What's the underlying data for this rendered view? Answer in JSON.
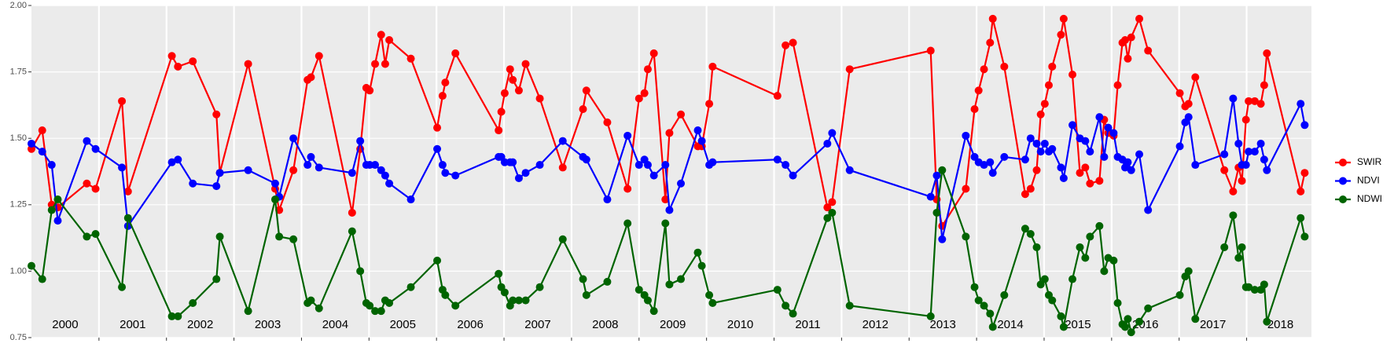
{
  "chart_data": {
    "type": "line",
    "x": [
      2000.0,
      2000.16,
      2000.3,
      2000.39,
      2000.82,
      2000.95,
      2001.34,
      2001.43,
      2002.08,
      2002.17,
      2002.39,
      2002.74,
      2002.79,
      2003.21,
      2003.61,
      2003.67,
      2003.88,
      2004.09,
      2004.14,
      2004.26,
      2004.75,
      2004.87,
      2004.96,
      2005.01,
      2005.09,
      2005.18,
      2005.24,
      2005.3,
      2005.62,
      2006.01,
      2006.09,
      2006.13,
      2006.28,
      2006.92,
      2006.96,
      2007.01,
      2007.09,
      2007.13,
      2007.22,
      2007.32,
      2007.53,
      2007.87,
      2008.17,
      2008.22,
      2008.53,
      2008.83,
      2009.0,
      2009.08,
      2009.13,
      2009.22,
      2009.39,
      2009.45,
      2009.62,
      2009.87,
      2009.93,
      2010.04,
      2010.09,
      2011.05,
      2011.17,
      2011.28,
      2011.79,
      2011.86,
      2012.12,
      2013.32,
      2013.41,
      2013.49,
      2013.84,
      2013.97,
      2014.03,
      2014.11,
      2014.2,
      2014.24,
      2014.41,
      2014.72,
      2014.8,
      2014.89,
      2014.95,
      2015.01,
      2015.07,
      2015.12,
      2015.25,
      2015.29,
      2015.42,
      2015.53,
      2015.61,
      2015.68,
      2015.82,
      2015.89,
      2015.95,
      2016.03,
      2016.09,
      2016.16,
      2016.2,
      2016.24,
      2016.29,
      2016.41,
      2016.54,
      2017.01,
      2017.09,
      2017.14,
      2017.24,
      2017.67,
      2017.8,
      2017.88,
      2017.93,
      2017.99,
      2018.03,
      2018.12,
      2018.21,
      2018.26,
      2018.3,
      2018.8,
      2018.86
    ],
    "series": [
      {
        "name": "SWIR",
        "color": "#ff0000",
        "values": [
          1.46,
          1.53,
          1.25,
          1.24,
          1.33,
          1.31,
          1.64,
          1.3,
          1.81,
          1.77,
          1.79,
          1.59,
          1.37,
          1.78,
          1.31,
          1.23,
          1.38,
          1.72,
          1.73,
          1.81,
          1.22,
          1.46,
          1.69,
          1.68,
          1.78,
          1.89,
          1.78,
          1.87,
          1.8,
          1.54,
          1.66,
          1.71,
          1.82,
          1.53,
          1.6,
          1.67,
          1.76,
          1.72,
          1.68,
          1.78,
          1.65,
          1.39,
          1.61,
          1.68,
          1.56,
          1.31,
          1.65,
          1.67,
          1.76,
          1.82,
          1.27,
          1.52,
          1.59,
          1.47,
          1.47,
          1.63,
          1.77,
          1.66,
          1.85,
          1.86,
          1.24,
          1.26,
          1.76,
          1.83,
          1.27,
          1.17,
          1.31,
          1.61,
          1.68,
          1.76,
          1.86,
          1.95,
          1.77,
          1.29,
          1.31,
          1.38,
          1.59,
          1.63,
          1.7,
          1.77,
          1.89,
          1.95,
          1.74,
          1.37,
          1.39,
          1.33,
          1.34,
          1.57,
          1.52,
          1.51,
          1.7,
          1.86,
          1.87,
          1.8,
          1.88,
          1.95,
          1.83,
          1.67,
          1.62,
          1.63,
          1.73,
          1.38,
          1.3,
          1.39,
          1.34,
          1.57,
          1.64,
          1.64,
          1.63,
          1.7,
          1.82,
          1.3,
          1.37
        ]
      },
      {
        "name": "NDVI",
        "color": "#0000ff",
        "values": [
          1.48,
          1.45,
          1.4,
          1.19,
          1.49,
          1.46,
          1.39,
          1.17,
          1.41,
          1.42,
          1.33,
          1.32,
          1.37,
          1.38,
          1.33,
          1.28,
          1.5,
          1.4,
          1.43,
          1.39,
          1.37,
          1.49,
          1.4,
          1.4,
          1.4,
          1.38,
          1.36,
          1.33,
          1.27,
          1.46,
          1.4,
          1.37,
          1.36,
          1.43,
          1.43,
          1.41,
          1.41,
          1.41,
          1.35,
          1.37,
          1.4,
          1.49,
          1.43,
          1.42,
          1.27,
          1.51,
          1.4,
          1.42,
          1.4,
          1.36,
          1.4,
          1.23,
          1.33,
          1.53,
          1.49,
          1.4,
          1.41,
          1.42,
          1.4,
          1.36,
          1.48,
          1.52,
          1.38,
          1.28,
          1.36,
          1.12,
          1.51,
          1.43,
          1.41,
          1.4,
          1.41,
          1.37,
          1.43,
          1.42,
          1.5,
          1.48,
          1.45,
          1.48,
          1.45,
          1.46,
          1.39,
          1.35,
          1.55,
          1.5,
          1.49,
          1.45,
          1.58,
          1.43,
          1.54,
          1.52,
          1.43,
          1.42,
          1.39,
          1.41,
          1.38,
          1.44,
          1.23,
          1.47,
          1.56,
          1.58,
          1.4,
          1.44,
          1.65,
          1.48,
          1.4,
          1.4,
          1.45,
          1.45,
          1.48,
          1.42,
          1.38,
          1.63,
          1.55
        ]
      },
      {
        "name": "NDWI",
        "color": "#006400",
        "values": [
          1.02,
          0.97,
          1.23,
          1.27,
          1.13,
          1.14,
          0.94,
          1.2,
          0.83,
          0.83,
          0.88,
          0.97,
          1.13,
          0.85,
          1.27,
          1.13,
          1.12,
          0.88,
          0.89,
          0.86,
          1.15,
          1.0,
          0.88,
          0.87,
          0.85,
          0.85,
          0.89,
          0.88,
          0.94,
          1.04,
          0.93,
          0.91,
          0.87,
          0.99,
          0.94,
          0.92,
          0.87,
          0.89,
          0.89,
          0.89,
          0.94,
          1.12,
          0.97,
          0.91,
          0.96,
          1.18,
          0.93,
          0.91,
          0.89,
          0.85,
          1.18,
          0.95,
          0.97,
          1.07,
          1.02,
          0.91,
          0.88,
          0.93,
          0.87,
          0.84,
          1.2,
          1.22,
          0.87,
          0.83,
          1.22,
          1.38,
          1.13,
          0.94,
          0.89,
          0.87,
          0.84,
          0.79,
          0.91,
          1.16,
          1.14,
          1.09,
          0.95,
          0.97,
          0.91,
          0.89,
          0.83,
          0.79,
          0.97,
          1.09,
          1.05,
          1.13,
          1.17,
          1.0,
          1.05,
          1.04,
          0.88,
          0.8,
          0.79,
          0.82,
          0.77,
          0.81,
          0.86,
          0.91,
          0.98,
          1.0,
          0.82,
          1.09,
          1.21,
          1.05,
          1.09,
          0.94,
          0.94,
          0.93,
          0.93,
          0.95,
          0.81,
          1.2,
          1.13
        ]
      }
    ],
    "xlim": [
      2000,
      2018.96
    ],
    "xticks": [
      2001,
      2002,
      2003,
      2004,
      2005,
      2006,
      2007,
      2008,
      2009,
      2010,
      2011,
      2012,
      2013,
      2014,
      2015,
      2016,
      2017,
      2018
    ],
    "ylim": [
      0.75,
      2.0
    ],
    "yticks": [
      {
        "value": 0.75,
        "label": "0.75"
      },
      {
        "value": 1.0,
        "label": "1.00"
      },
      {
        "value": 1.25,
        "label": "1.25"
      },
      {
        "value": 1.5,
        "label": "1.50"
      },
      {
        "value": 1.75,
        "label": "1.75"
      },
      {
        "value": 2.0,
        "label": "2.00"
      }
    ],
    "year_labels": [
      {
        "value": 2000.5,
        "label": "2000"
      },
      {
        "value": 2001.5,
        "label": "2001"
      },
      {
        "value": 2002.5,
        "label": "2002"
      },
      {
        "value": 2003.5,
        "label": "2003"
      },
      {
        "value": 2004.5,
        "label": "2004"
      },
      {
        "value": 2005.5,
        "label": "2005"
      },
      {
        "value": 2006.5,
        "label": "2006"
      },
      {
        "value": 2007.5,
        "label": "2007"
      },
      {
        "value": 2008.5,
        "label": "2008"
      },
      {
        "value": 2009.5,
        "label": "2009"
      },
      {
        "value": 2010.5,
        "label": "2010"
      },
      {
        "value": 2011.5,
        "label": "2011"
      },
      {
        "value": 2012.5,
        "label": "2012"
      },
      {
        "value": 2013.5,
        "label": "2013"
      },
      {
        "value": 2014.5,
        "label": "2014"
      },
      {
        "value": 2015.5,
        "label": "2015"
      },
      {
        "value": 2016.5,
        "label": "2016"
      },
      {
        "value": 2017.5,
        "label": "2017"
      },
      {
        "value": 2018.5,
        "label": "2018"
      }
    ],
    "grid": true,
    "legend": "right"
  }
}
